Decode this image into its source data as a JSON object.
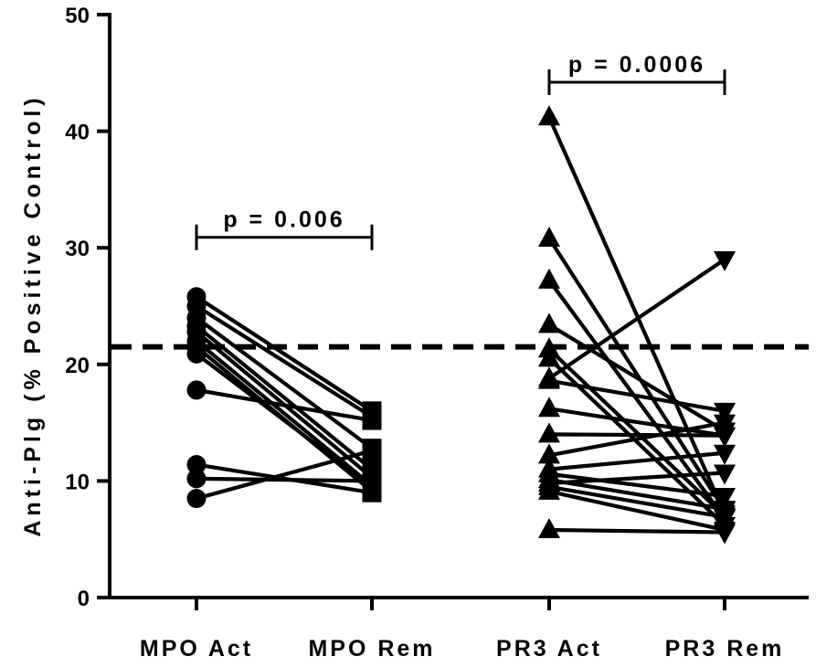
{
  "chart_data": {
    "type": "scatter",
    "ylabel": "Anti-Plg (% Positive Control)",
    "ylim": [
      0,
      50
    ],
    "yticks": [
      "0",
      "10",
      "20",
      "30",
      "40",
      "50"
    ],
    "categories": [
      "MPO Act",
      "MPO Rem",
      "PR3 Act",
      "PR3 Rem"
    ],
    "threshold": 21.5,
    "groups": [
      {
        "active": "MPO Act",
        "remission": "MPO Rem",
        "active_marker": "circle",
        "remission_marker": "square",
        "pairs": [
          [
            25.8,
            16.0
          ],
          [
            25.0,
            15.5
          ],
          [
            24.0,
            12.8
          ],
          [
            23.3,
            11.0
          ],
          [
            22.8,
            10.3
          ],
          [
            22.0,
            9.6
          ],
          [
            21.5,
            9.1
          ],
          [
            20.9,
            9.5
          ],
          [
            17.8,
            15.2
          ],
          [
            11.4,
            9.0
          ],
          [
            10.2,
            10.0
          ],
          [
            8.5,
            12.6
          ]
        ]
      },
      {
        "active": "PR3 Act",
        "remission": "PR3 Rem",
        "active_marker": "triangle-up",
        "remission_marker": "triangle-down",
        "pairs": [
          [
            41.2,
            7.2
          ],
          [
            30.8,
            7.5
          ],
          [
            27.2,
            6.8
          ],
          [
            23.4,
            14.3
          ],
          [
            21.3,
            7.0
          ],
          [
            20.5,
            6.2
          ],
          [
            18.8,
            29.0
          ],
          [
            18.6,
            16.0
          ],
          [
            16.2,
            13.9
          ],
          [
            14.0,
            13.9
          ],
          [
            12.2,
            15.0
          ],
          [
            11.0,
            12.4
          ],
          [
            10.6,
            8.7
          ],
          [
            10.1,
            7.6
          ],
          [
            9.8,
            10.7
          ],
          [
            9.5,
            6.9
          ],
          [
            9.1,
            5.8
          ],
          [
            5.8,
            5.6
          ]
        ]
      }
    ],
    "comparisons": [
      {
        "from": "MPO Act",
        "to": "MPO Rem",
        "label": "p = 0.006",
        "y": 30.9
      },
      {
        "from": "PR3 Act",
        "to": "PR3 Rem",
        "label": "p = 0.0006",
        "y": 44.2
      }
    ]
  }
}
